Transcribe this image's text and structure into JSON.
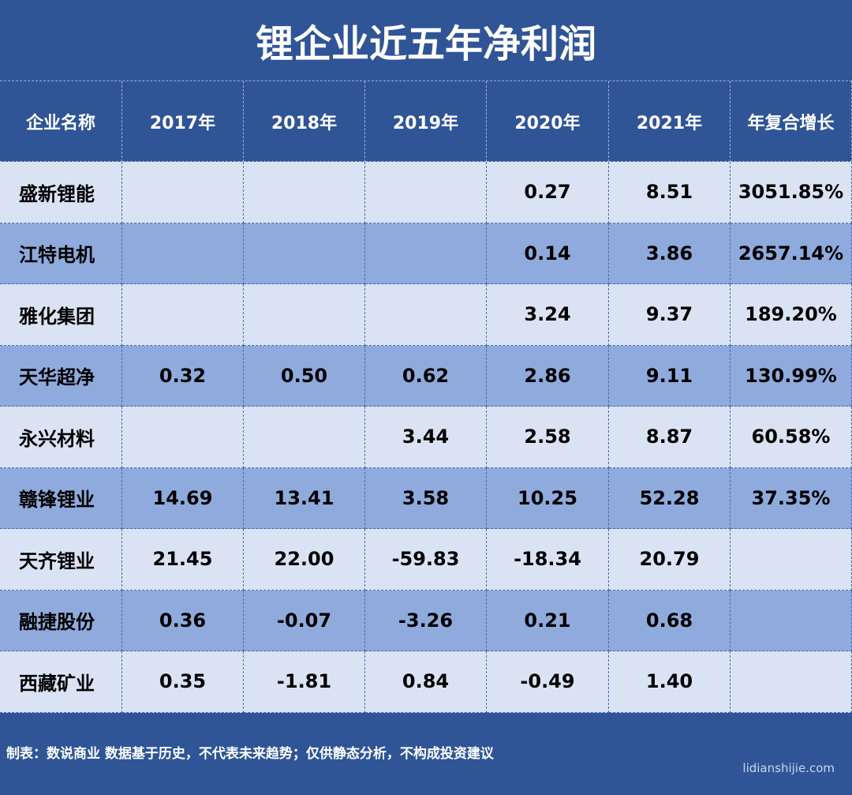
{
  "title": "锂企业近五年净利润",
  "table": {
    "header": [
      "企业名称",
      "2017年",
      "2018年",
      "2019年",
      "2020年",
      "2021年",
      "年复合增长"
    ],
    "rows": [
      [
        "盛新锂能",
        null,
        null,
        null,
        "0.27",
        "8.51",
        "3051.85%"
      ],
      [
        "江特电机",
        null,
        null,
        null,
        "0.14",
        "3.86",
        "2657.14%"
      ],
      [
        "雅化集团",
        null,
        null,
        null,
        "3.24",
        "9.37",
        "189.20%"
      ],
      [
        "天华超净",
        "0.32",
        "0.50",
        "0.62",
        "2.86",
        "9.11",
        "130.99%"
      ],
      [
        "永兴材料",
        null,
        null,
        "3.44",
        "2.58",
        "8.87",
        "60.58%"
      ],
      [
        "赣锋锂业",
        "14.69",
        "13.41",
        "3.58",
        "10.25",
        "52.28",
        "37.35%"
      ],
      [
        "天齐锂业",
        "21.45",
        "22.00",
        "-59.83",
        "-18.34",
        "20.79",
        null
      ],
      [
        "融捷股份",
        "0.36",
        "-0.07",
        "-3.26",
        "0.21",
        "0.68",
        null
      ],
      [
        "西藏矿业",
        "0.35",
        "-1.81",
        "0.84",
        "-0.49",
        "1.40",
        null
      ]
    ]
  },
  "note": "制表：数说商业 数据基于历史，不代表未来趋势；仅供静态分析，不构成投资建议",
  "watermark": "lidianshijie.com"
}
